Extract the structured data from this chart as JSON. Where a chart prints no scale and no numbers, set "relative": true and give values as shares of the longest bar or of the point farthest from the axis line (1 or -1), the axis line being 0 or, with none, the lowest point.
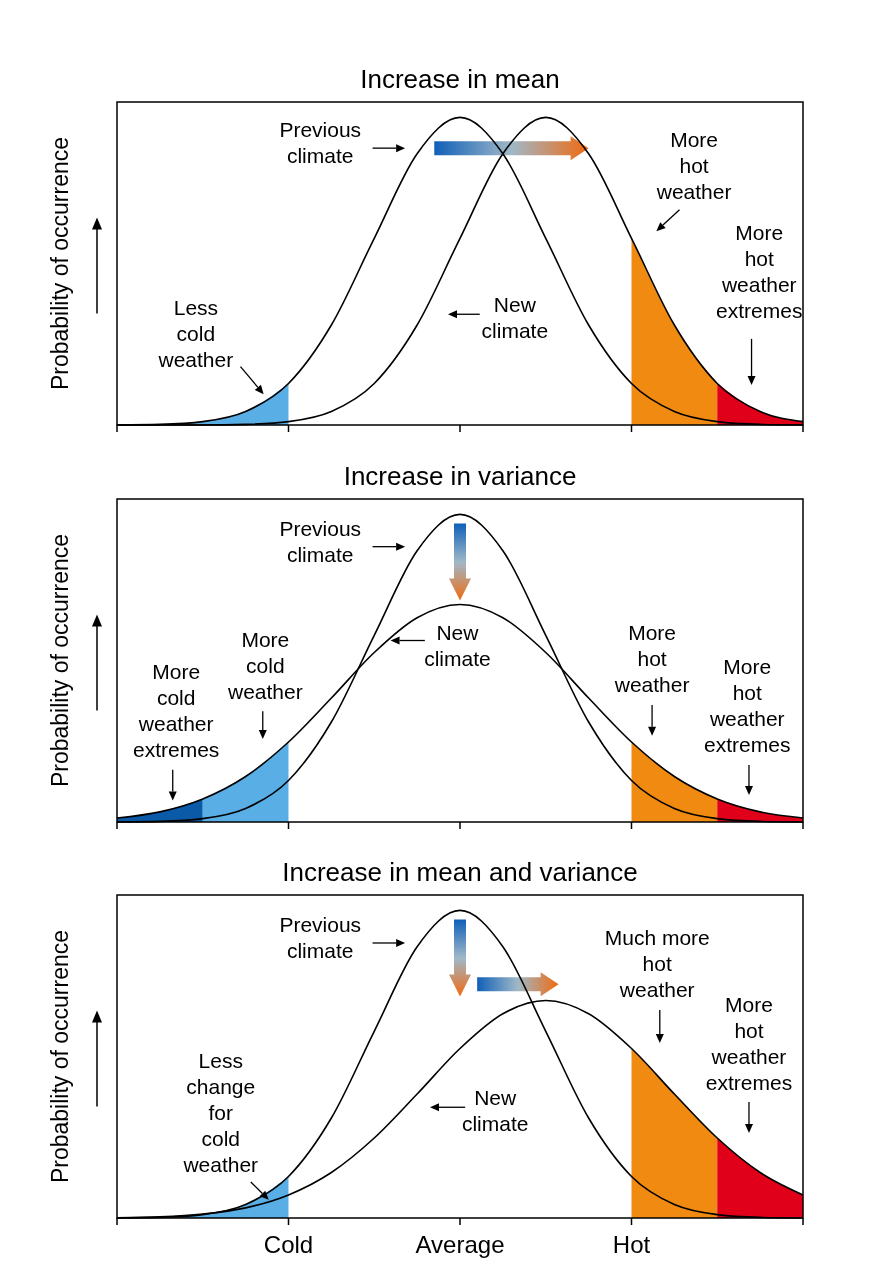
{
  "chart_data": [
    {
      "type": "line",
      "title": "Increase in mean",
      "ylabel": "Probability of occurrence",
      "relative": true,
      "categories": [
        null,
        null,
        null,
        null,
        null,
        null,
        null,
        null,
        null,
        null,
        null,
        null,
        null,
        null,
        null,
        null,
        null
      ],
      "series": [
        {
          "type": "area",
          "color": "#5aaee6",
          "values": [
            0,
            0.002,
            0.011,
            0.044,
            0.135,
            null,
            null,
            null,
            null,
            null,
            null,
            null,
            null,
            null,
            null,
            null,
            null
          ]
        },
        {
          "type": "area",
          "color": "#f08a10",
          "values": [
            null,
            null,
            null,
            null,
            null,
            null,
            null,
            null,
            null,
            null,
            null,
            null,
            0.607,
            0.325,
            0.135,
            null,
            null
          ]
        },
        {
          "type": "area",
          "color": "#e0001a",
          "values": [
            null,
            null,
            null,
            null,
            null,
            null,
            null,
            null,
            null,
            null,
            null,
            null,
            null,
            null,
            0.135,
            0.044,
            0.011
          ]
        },
        {
          "color": "#000000",
          "values": [
            0,
            0.002,
            0.011,
            0.044,
            0.135,
            0.325,
            0.607,
            0.882,
            1,
            0.882,
            0.607,
            0.325,
            0.135,
            0.044,
            0.011,
            0.002,
            0
          ]
        },
        {
          "color": "#000000",
          "values": [
            0,
            0,
            0,
            0.002,
            0.011,
            0.044,
            0.135,
            0.325,
            0.607,
            0.882,
            1,
            0.882,
            0.607,
            0.325,
            0.135,
            0.044,
            0.011
          ]
        }
      ],
      "annotations": [
        "Previous climate",
        "New climate",
        "Less cold weather",
        "More hot weather",
        "More hot weather extremes"
      ]
    },
    {
      "type": "line",
      "title": "Increase in variance",
      "ylabel": "Probability of occurrence",
      "relative": true,
      "categories": [
        null,
        null,
        null,
        null,
        null,
        null,
        null,
        null,
        null,
        null,
        null,
        null,
        null,
        null,
        null,
        null,
        null
      ],
      "series": [
        {
          "type": "area",
          "color": "#0a5aa8",
          "values": [
            0.013,
            0.033,
            0.075,
            null,
            null,
            null,
            null,
            null,
            null,
            null,
            null,
            null,
            null,
            null,
            null,
            null,
            null
          ]
        },
        {
          "type": "area",
          "color": "#5aaee6",
          "values": [
            null,
            null,
            0.075,
            0.148,
            0.26,
            null,
            null,
            null,
            null,
            null,
            null,
            null,
            null,
            null,
            null,
            null,
            null
          ]
        },
        {
          "type": "area",
          "color": "#f08a10",
          "values": [
            null,
            null,
            null,
            null,
            null,
            null,
            null,
            null,
            null,
            null,
            null,
            null,
            0.26,
            0.148,
            0.075,
            null,
            null
          ]
        },
        {
          "type": "area",
          "color": "#e0001a",
          "values": [
            null,
            null,
            null,
            null,
            null,
            null,
            null,
            null,
            null,
            null,
            null,
            null,
            null,
            null,
            0.075,
            0.033,
            0.013
          ]
        },
        {
          "color": "#000000",
          "values": [
            0,
            0.002,
            0.011,
            0.044,
            0.135,
            0.325,
            0.607,
            0.882,
            1,
            0.882,
            0.607,
            0.325,
            0.135,
            0.044,
            0.011,
            0.002,
            0
          ]
        },
        {
          "color": "#000000",
          "values": [
            0.013,
            0.033,
            0.075,
            0.148,
            0.26,
            0.403,
            0.551,
            0.664,
            0.707,
            0.664,
            0.551,
            0.403,
            0.26,
            0.148,
            0.075,
            0.033,
            0.013
          ]
        }
      ],
      "annotations": [
        "Previous climate",
        "New climate",
        "More cold weather extremes",
        "More cold weather",
        "More hot weather",
        "More hot weather extremes"
      ]
    },
    {
      "type": "line",
      "title": "Increase in mean and variance",
      "ylabel": "Probability of occurrence",
      "relative": true,
      "categories": [
        null,
        null,
        null,
        null,
        "Cold",
        null,
        null,
        null,
        "Average",
        null,
        null,
        null,
        "Hot",
        null,
        null,
        null,
        null
      ],
      "tick_labels": "x",
      "series": [
        {
          "type": "area",
          "color": "#5aaee6",
          "values": [
            0,
            0.002,
            0.011,
            0.044,
            0.135,
            null,
            null,
            null,
            null,
            null,
            null,
            null,
            null,
            null,
            null,
            null,
            null
          ]
        },
        {
          "type": "area",
          "color": "#f08a10",
          "values": [
            null,
            null,
            null,
            null,
            null,
            null,
            null,
            null,
            null,
            null,
            null,
            null,
            0.551,
            0.403,
            0.26,
            null,
            null
          ]
        },
        {
          "type": "area",
          "color": "#e0001a",
          "values": [
            null,
            null,
            null,
            null,
            null,
            null,
            null,
            null,
            null,
            null,
            null,
            null,
            null,
            null,
            0.26,
            0.148,
            0.075
          ]
        },
        {
          "color": "#000000",
          "values": [
            0,
            0.002,
            0.011,
            0.044,
            0.135,
            0.325,
            0.607,
            0.882,
            1,
            0.882,
            0.607,
            0.325,
            0.135,
            0.044,
            0.011,
            0.002,
            0
          ]
        },
        {
          "color": "#000000",
          "values": [
            0.001,
            0.004,
            0.013,
            0.033,
            0.075,
            0.148,
            0.26,
            0.403,
            0.551,
            0.664,
            0.707,
            0.664,
            0.551,
            0.403,
            0.26,
            0.148,
            0.075
          ]
        }
      ],
      "annotations": [
        "Previous climate",
        "Much more hot weather",
        "More hot weather extremes",
        "Less change for cold weather",
        "New climate"
      ]
    }
  ]
}
